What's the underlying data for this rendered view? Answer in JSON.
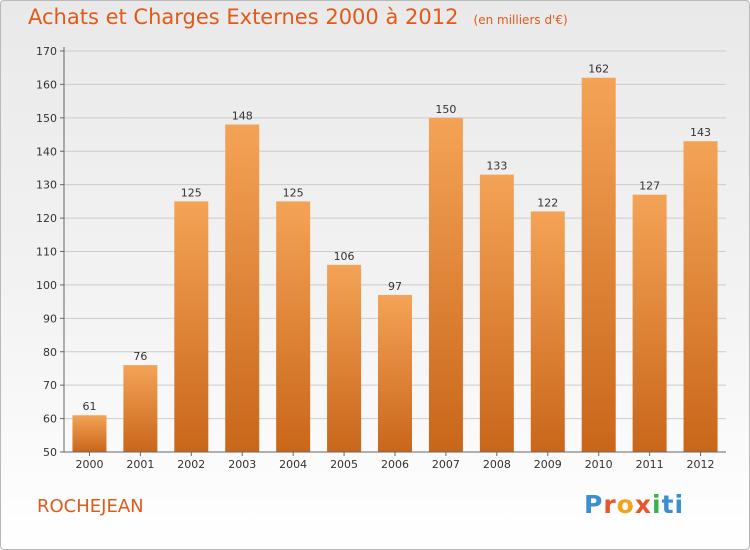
{
  "header": {
    "title": "Achats et Charges Externes 2000 à 2012",
    "unit": "(en milliers d'€)"
  },
  "commune": "ROCHEJEAN",
  "logo": {
    "text": "Proxiti",
    "letters": [
      "P",
      "r",
      "o",
      "x",
      "i",
      "ti"
    ]
  },
  "colors": {
    "accent": "#e05a1a",
    "bar_top": "#f4a356",
    "bar_bottom": "#c9661a",
    "grid": "#cccccc"
  },
  "chart_data": {
    "type": "bar",
    "categories": [
      "2000",
      "2001",
      "2002",
      "2003",
      "2004",
      "2005",
      "2006",
      "2007",
      "2008",
      "2009",
      "2010",
      "2011",
      "2012"
    ],
    "values": [
      61,
      76,
      125,
      148,
      125,
      106,
      97,
      150,
      133,
      122,
      162,
      127,
      143
    ],
    "title": "Achats et Charges Externes 2000 à 2012",
    "ylim": [
      50,
      170
    ],
    "yticks": [
      50,
      60,
      70,
      80,
      90,
      100,
      110,
      120,
      130,
      140,
      150,
      160,
      170
    ],
    "grid": true,
    "data_labels": true
  }
}
